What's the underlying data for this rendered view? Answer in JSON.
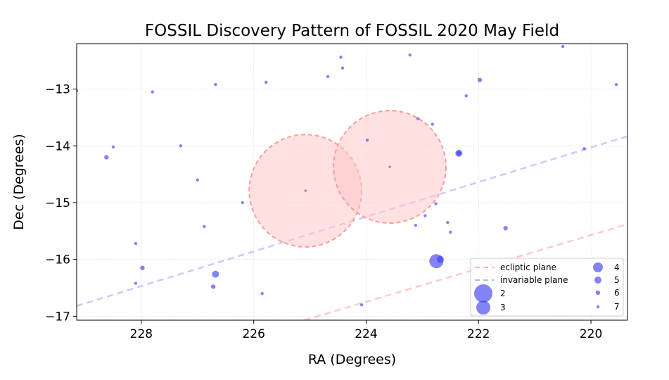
{
  "chart_data": {
    "type": "scatter",
    "title": "FOSSIL Discovery Pattern of FOSSIL 2020 May Field",
    "xlabel": "RA (Degrees)",
    "ylabel": "Dec (Degrees)",
    "xlim": [
      229.15,
      219.35
    ],
    "ylim": [
      -17.07,
      -12.2
    ],
    "x_ticks": [
      228,
      226,
      224,
      222,
      220
    ],
    "x_tick_labels": [
      "228",
      "226",
      "224",
      "222",
      "220"
    ],
    "y_ticks": [
      -13,
      -14,
      -15,
      -16,
      -17
    ],
    "y_tick_labels": [
      "−13",
      "−14",
      "−15",
      "−16",
      "−17"
    ],
    "grid": true,
    "legend_placement": "lower-right",
    "colors": {
      "points": "#4040ee",
      "fields": "#ff9a9a",
      "ecliptic": "#ffb3b3",
      "invariable": "#b3b3ff"
    },
    "fields": [
      {
        "center": [
          225.08,
          -14.79
        ],
        "radius_deg": 1.0
      },
      {
        "center": [
          223.58,
          -14.37
        ],
        "radius_deg": 1.0
      }
    ],
    "lines": [
      {
        "name": "ecliptic plane",
        "from": [
          225.1,
          -17.07
        ],
        "to": [
          219.35,
          -15.38
        ]
      },
      {
        "name": "invariable plane",
        "from": [
          229.15,
          -16.82
        ],
        "to": [
          219.35,
          -13.83
        ]
      }
    ],
    "legend_entries": {
      "ecliptic": "ecliptic plane",
      "invariable": "invariable plane",
      "sizes": [
        {
          "label": "2",
          "size": 2
        },
        {
          "label": "3",
          "size": 3
        },
        {
          "label": "4",
          "size": 4
        },
        {
          "label": "5",
          "size": 5
        },
        {
          "label": "6",
          "size": 6
        },
        {
          "label": "7",
          "size": 7
        }
      ]
    },
    "points": [
      {
        "ra": 229.15,
        "dec": -13.03,
        "size": 7
      },
      {
        "ra": 228.62,
        "dec": -14.2,
        "size": 6
      },
      {
        "ra": 228.5,
        "dec": -14.02,
        "size": 7
      },
      {
        "ra": 228.1,
        "dec": -15.72,
        "size": 7
      },
      {
        "ra": 227.98,
        "dec": -16.15,
        "size": 6
      },
      {
        "ra": 228.1,
        "dec": -16.42,
        "size": 7
      },
      {
        "ra": 227.8,
        "dec": -13.05,
        "size": 7
      },
      {
        "ra": 227.3,
        "dec": -14.0,
        "size": 7
      },
      {
        "ra": 227.0,
        "dec": -14.6,
        "size": 7
      },
      {
        "ra": 226.88,
        "dec": -15.42,
        "size": 7
      },
      {
        "ra": 226.68,
        "dec": -12.92,
        "size": 7
      },
      {
        "ra": 226.68,
        "dec": -16.26,
        "size": 5
      },
      {
        "ra": 226.72,
        "dec": -16.48,
        "size": 6
      },
      {
        "ra": 226.2,
        "dec": -15.0,
        "size": 7
      },
      {
        "ra": 225.85,
        "dec": -16.6,
        "size": 7
      },
      {
        "ra": 225.78,
        "dec": -12.88,
        "size": 7
      },
      {
        "ra": 224.68,
        "dec": -12.78,
        "size": 7
      },
      {
        "ra": 224.45,
        "dec": -12.44,
        "size": 7
      },
      {
        "ra": 224.42,
        "dec": -12.63,
        "size": 7
      },
      {
        "ra": 224.08,
        "dec": -16.8,
        "size": 7
      },
      {
        "ra": 223.98,
        "dec": -13.9,
        "size": 7
      },
      {
        "ra": 223.22,
        "dec": -12.4,
        "size": 7
      },
      {
        "ra": 223.08,
        "dec": -13.52,
        "size": 7
      },
      {
        "ra": 223.12,
        "dec": -15.4,
        "size": 7
      },
      {
        "ra": 222.95,
        "dec": -15.23,
        "size": 7
      },
      {
        "ra": 222.82,
        "dec": -13.62,
        "size": 7
      },
      {
        "ra": 222.76,
        "dec": -15.02,
        "size": 7
      },
      {
        "ra": 222.55,
        "dec": -15.35,
        "size": 7
      },
      {
        "ra": 222.5,
        "dec": -15.52,
        "size": 7
      },
      {
        "ra": 222.75,
        "dec": -16.03,
        "size": 3
      },
      {
        "ra": 222.68,
        "dec": -16.0,
        "size": 5
      },
      {
        "ra": 222.35,
        "dec": -14.13,
        "size": 5
      },
      {
        "ra": 222.35,
        "dec": -14.13,
        "size": 6
      },
      {
        "ra": 222.22,
        "dec": -13.12,
        "size": 7
      },
      {
        "ra": 221.98,
        "dec": -12.84,
        "size": 6
      },
      {
        "ra": 221.52,
        "dec": -15.45,
        "size": 6
      },
      {
        "ra": 220.5,
        "dec": -12.25,
        "size": 7
      },
      {
        "ra": 220.12,
        "dec": -14.05,
        "size": 7
      },
      {
        "ra": 219.55,
        "dec": -12.92,
        "size": 7
      }
    ]
  }
}
